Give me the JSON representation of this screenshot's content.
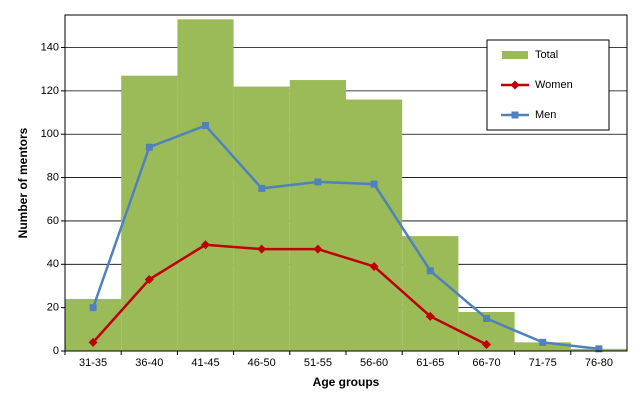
{
  "chart_data": {
    "type": "bar-line",
    "x_label": "Age groups",
    "y_label": "Number of mentors",
    "categories": [
      "31-35",
      "36-40",
      "41-45",
      "46-50",
      "51-55",
      "56-60",
      "61-65",
      "66-70",
      "71-75",
      "76-80"
    ],
    "series": [
      {
        "name": "Total",
        "type": "bar",
        "color": "#9bbb59",
        "values": [
          24,
          127,
          153,
          122,
          125,
          116,
          53,
          18,
          4,
          1
        ]
      },
      {
        "name": "Women",
        "type": "line",
        "marker": "diamond",
        "color": "#c00000",
        "values": [
          4,
          33,
          49,
          47,
          47,
          39,
          16,
          3,
          null,
          null
        ]
      },
      {
        "name": "Men",
        "type": "line",
        "marker": "square",
        "color": "#4f81bd",
        "values": [
          20,
          94,
          104,
          75,
          78,
          77,
          37,
          15,
          4,
          1
        ]
      }
    ],
    "ylim": [
      0,
      155
    ],
    "yticks": [
      0,
      20,
      40,
      60,
      80,
      100,
      120,
      140
    ],
    "grid": true,
    "legend": "top-right"
  }
}
